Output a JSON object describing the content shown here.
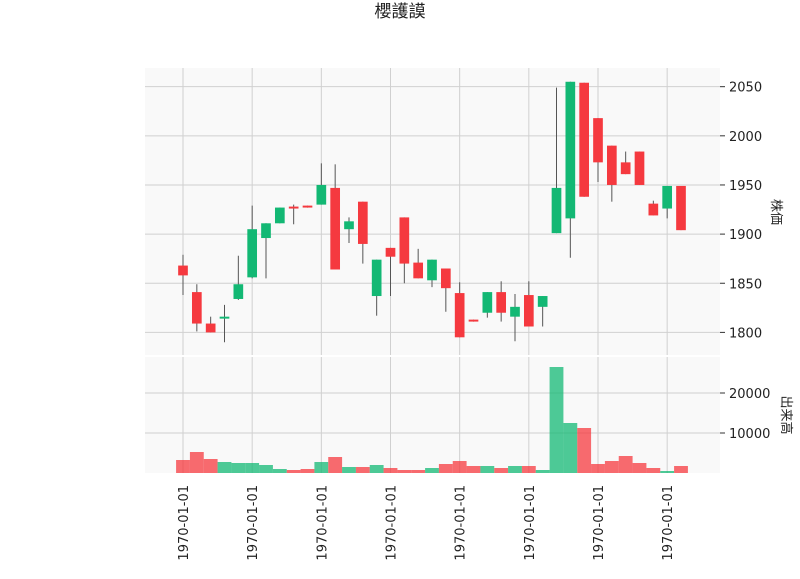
{
  "chart_data": {
    "type": "candlestick",
    "title": "櫻護謨",
    "ylabel": "株価",
    "volume_label": "出来高",
    "categories": [
      "1970-01-01",
      null,
      null,
      null,
      null,
      "1970-01-01",
      null,
      null,
      null,
      null,
      "1970-01-01",
      null,
      null,
      null,
      null,
      "1970-01-01",
      null,
      null,
      null,
      null,
      "1970-01-01",
      null,
      null,
      null,
      null,
      "1970-01-01",
      null,
      null,
      null,
      null,
      "1970-01-01",
      null,
      null,
      null,
      null,
      "1970-01-01",
      null
    ],
    "open": [
      1868,
      1841,
      1809,
      1814,
      1834,
      1856,
      1896,
      1911,
      1928,
      1929,
      1930,
      1947,
      1905,
      1933,
      1837,
      1886,
      1917,
      1871,
      1853,
      1865,
      1840,
      1813,
      1820,
      1841,
      1816,
      1838,
      1826,
      1901,
      1916,
      2054,
      2018,
      1990,
      1973,
      1984,
      1931,
      1926,
      1949
    ],
    "high": [
      1879,
      1849,
      1816,
      1828,
      1878,
      1929,
      1911,
      1927,
      1930,
      1929,
      1972,
      1971,
      1917,
      1933,
      1874,
      1886,
      1917,
      1885,
      1874,
      1865,
      1851,
      1813,
      1841,
      1852,
      1839,
      1852,
      1837,
      2049,
      2055,
      2054,
      2018,
      1990,
      1984,
      1984,
      1934,
      1949,
      1949
    ],
    "low": [
      1838,
      1801,
      1800,
      1790,
      1833,
      1855,
      1855,
      1911,
      1910,
      1927,
      1930,
      1864,
      1891,
      1870,
      1817,
      1837,
      1850,
      1855,
      1846,
      1821,
      1795,
      1811,
      1815,
      1811,
      1791,
      1806,
      1806,
      1901,
      1876,
      1938,
      1953,
      1933,
      1961,
      1950,
      1919,
      1916,
      1904
    ],
    "close": [
      1858,
      1809,
      1800,
      1816,
      1849,
      1905,
      1911,
      1927,
      1926,
      1927,
      1950,
      1864,
      1913,
      1890,
      1874,
      1877,
      1870,
      1855,
      1874,
      1845,
      1795,
      1811,
      1841,
      1820,
      1826,
      1806,
      1837,
      1947,
      2055,
      1938,
      1973,
      1950,
      1961,
      1950,
      1919,
      1949,
      1904
    ],
    "volume": [
      3250,
      5250,
      3500,
      2750,
      2500,
      2500,
      2000,
      1000,
      750,
      1000,
      2750,
      4000,
      1500,
      1500,
      2000,
      1250,
      750,
      750,
      1250,
      2250,
      3000,
      1750,
      1750,
      1250,
      1750,
      1750,
      750,
      26500,
      12500,
      11250,
      2250,
      3000,
      4250,
      2500,
      1250,
      500,
      1750
    ],
    "up_color": "#13b874",
    "down_color": "#f5393f",
    "ylim": [
      1777,
      2069
    ],
    "yticks": [
      1800,
      1850,
      1900,
      1950,
      2000,
      2050
    ],
    "volume_ylim": [
      0,
      29000
    ],
    "volume_yticks": [
      10000,
      20000
    ],
    "grid": true
  }
}
